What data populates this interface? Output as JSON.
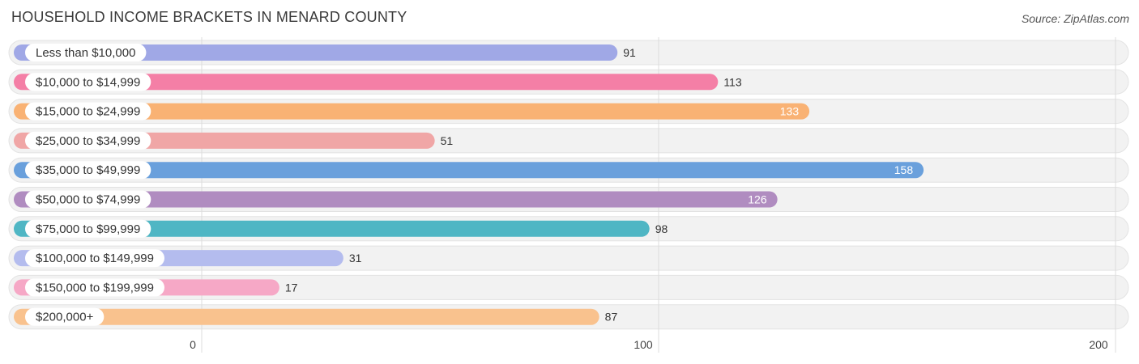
{
  "header": {
    "title": "HOUSEHOLD INCOME BRACKETS IN MENARD COUNTY",
    "source": "Source: ZipAtlas.com"
  },
  "chart_data": {
    "type": "bar",
    "orientation": "horizontal",
    "title": "HOUSEHOLD INCOME BRACKETS IN MENARD COUNTY",
    "categories": [
      "Less than $10,000",
      "$10,000 to $14,999",
      "$15,000 to $24,999",
      "$25,000 to $34,999",
      "$35,000 to $49,999",
      "$50,000 to $74,999",
      "$75,000 to $99,999",
      "$100,000 to $149,999",
      "$150,000 to $199,999",
      "$200,000+"
    ],
    "values": [
      91,
      113,
      133,
      51,
      158,
      126,
      98,
      31,
      17,
      87
    ],
    "colors": [
      "#a0a8e6",
      "#f47fa6",
      "#f9b274",
      "#f0a6a6",
      "#6aa0dc",
      "#b08cc0",
      "#4fb6c4",
      "#b4bcee",
      "#f6a8c6",
      "#f9c28e"
    ],
    "xlim": [
      0,
      200
    ],
    "xticks": [
      0,
      100,
      200
    ],
    "grid": true,
    "xlabel": "",
    "ylabel": ""
  }
}
